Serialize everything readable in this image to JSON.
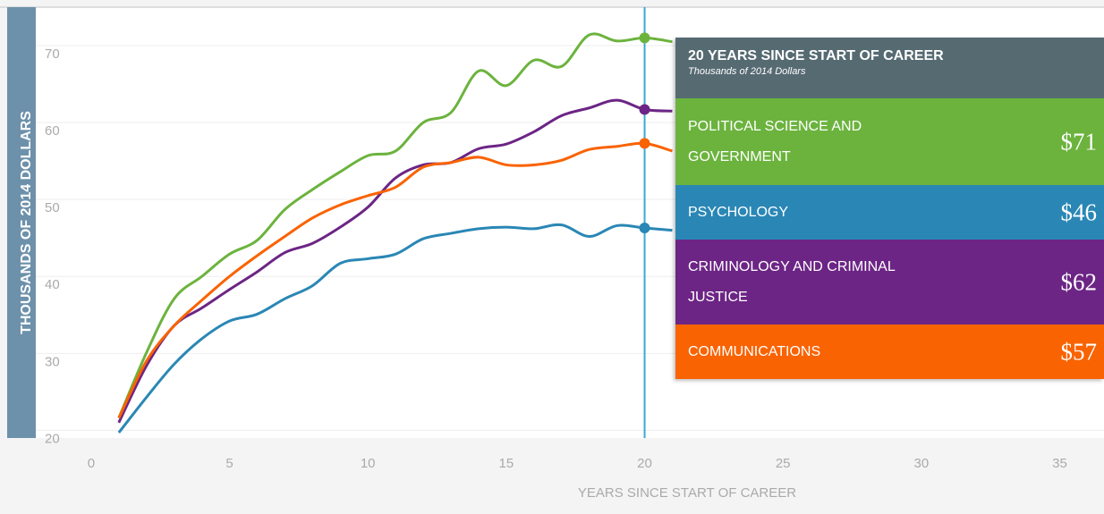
{
  "chart_data": {
    "type": "line",
    "ylabel": "THOUSANDS OF 2014 DOLLARS",
    "xlabel": "YEARS SINCE START OF CAREER",
    "x": [
      1,
      2,
      3,
      4,
      5,
      6,
      7,
      8,
      9,
      10,
      11,
      12,
      13,
      14,
      15,
      16,
      17,
      18,
      19,
      20,
      21
    ],
    "series": [
      {
        "name": "POLITICAL SCIENCE AND GOVERNMENT",
        "color": "#6cb33e",
        "values": [
          21.6,
          30.1,
          37.1,
          40,
          42.9,
          44.7,
          48.7,
          51.3,
          53.6,
          55.7,
          56.3,
          60,
          61.3,
          66.7,
          64.8,
          68.1,
          67.3,
          71.4,
          70.6,
          71,
          70.5
        ]
      },
      {
        "name": "PSYCHOLOGY",
        "color": "#2a87b5",
        "values": [
          19.7,
          24.3,
          28.6,
          31.9,
          34.2,
          35.1,
          37.1,
          38.8,
          41.7,
          42.3,
          42.9,
          44.9,
          45.6,
          46.2,
          46.4,
          46.2,
          46.7,
          45.2,
          46.6,
          46.3,
          46
        ]
      },
      {
        "name": "CRIMINOLOGY AND CRIMINAL JUSTICE",
        "color": "#6c2585",
        "values": [
          21,
          28.4,
          33.6,
          35.9,
          38.3,
          40.6,
          43.1,
          44.3,
          46.4,
          49,
          52.8,
          54.5,
          54.8,
          56.6,
          57.2,
          58.8,
          60.9,
          61.9,
          62.9,
          61.7,
          61.5
        ]
      },
      {
        "name": "COMMUNICATIONS",
        "color": "#f96302",
        "values": [
          21.6,
          29,
          33.6,
          36.9,
          40,
          42.7,
          45.2,
          47.6,
          49.3,
          50.5,
          51.6,
          54.2,
          54.8,
          55.5,
          54.5,
          54.5,
          55.1,
          56.5,
          56.9,
          57.3,
          56.3
        ]
      }
    ],
    "xlim": [
      -2,
      36.6
    ],
    "ylim": [
      19,
      75
    ],
    "xticks": [
      0,
      5,
      10,
      15,
      20,
      25,
      30,
      35
    ],
    "yticks": [
      20,
      30,
      40,
      50,
      60,
      70
    ],
    "grid": true,
    "tooltip": {
      "title": "20 YEARS SINCE START OF CAREER",
      "subtitle": "Thousands of 2014 Dollars",
      "x": 20,
      "value_labels": [
        "$71",
        "$46",
        "$62",
        "$57"
      ]
    }
  }
}
